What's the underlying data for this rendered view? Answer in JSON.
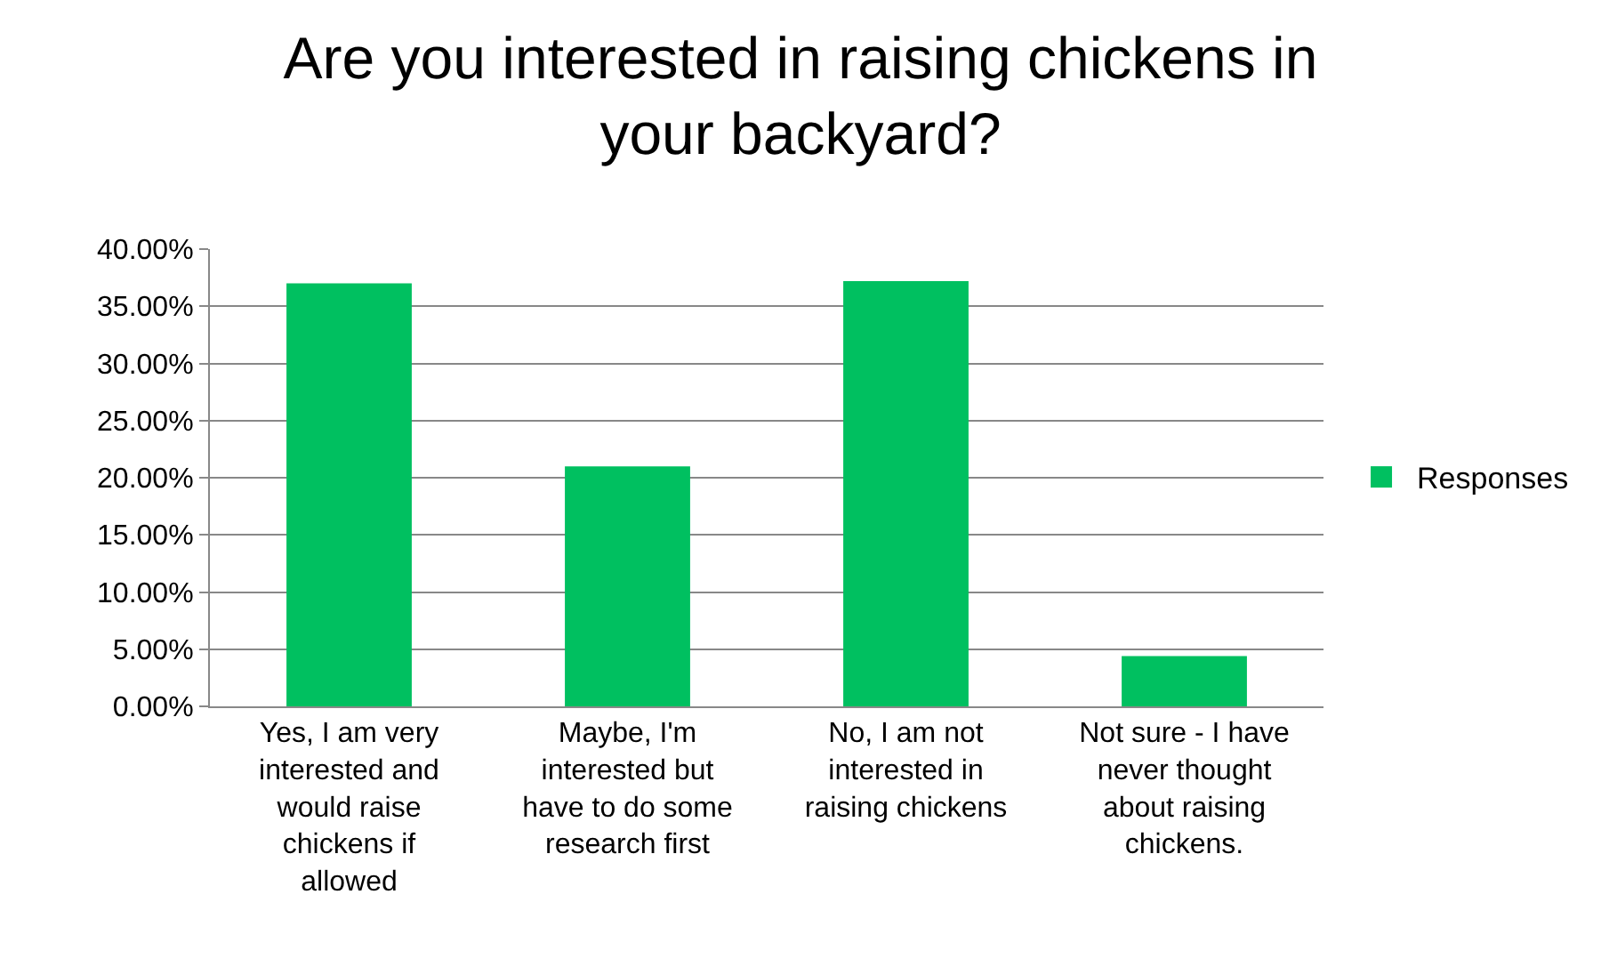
{
  "chart_data": {
    "type": "bar",
    "title": "Are you interested in raising chickens in your backyard?",
    "categories": [
      "Yes, I am very interested and would raise chickens if allowed",
      "Maybe, I'm interested but have to do some research first",
      "No, I am not interested in raising chickens",
      "Not sure - I have never thought about raising chickens."
    ],
    "series": [
      {
        "name": "Responses",
        "color": "#00c060",
        "values": [
          37.0,
          21.0,
          37.2,
          4.4
        ]
      }
    ],
    "ylim": [
      0,
      40
    ],
    "yticks": [
      {
        "value": 0,
        "label": "0.00%"
      },
      {
        "value": 5,
        "label": "5.00%"
      },
      {
        "value": 10,
        "label": "10.00%"
      },
      {
        "value": 15,
        "label": "15.00%"
      },
      {
        "value": 20,
        "label": "20.00%"
      },
      {
        "value": 25,
        "label": "25.00%"
      },
      {
        "value": 30,
        "label": "30.00%"
      },
      {
        "value": 35,
        "label": "35.00%"
      },
      {
        "value": 40,
        "label": "40.00%"
      }
    ],
    "grid": "y",
    "legend": "right"
  }
}
